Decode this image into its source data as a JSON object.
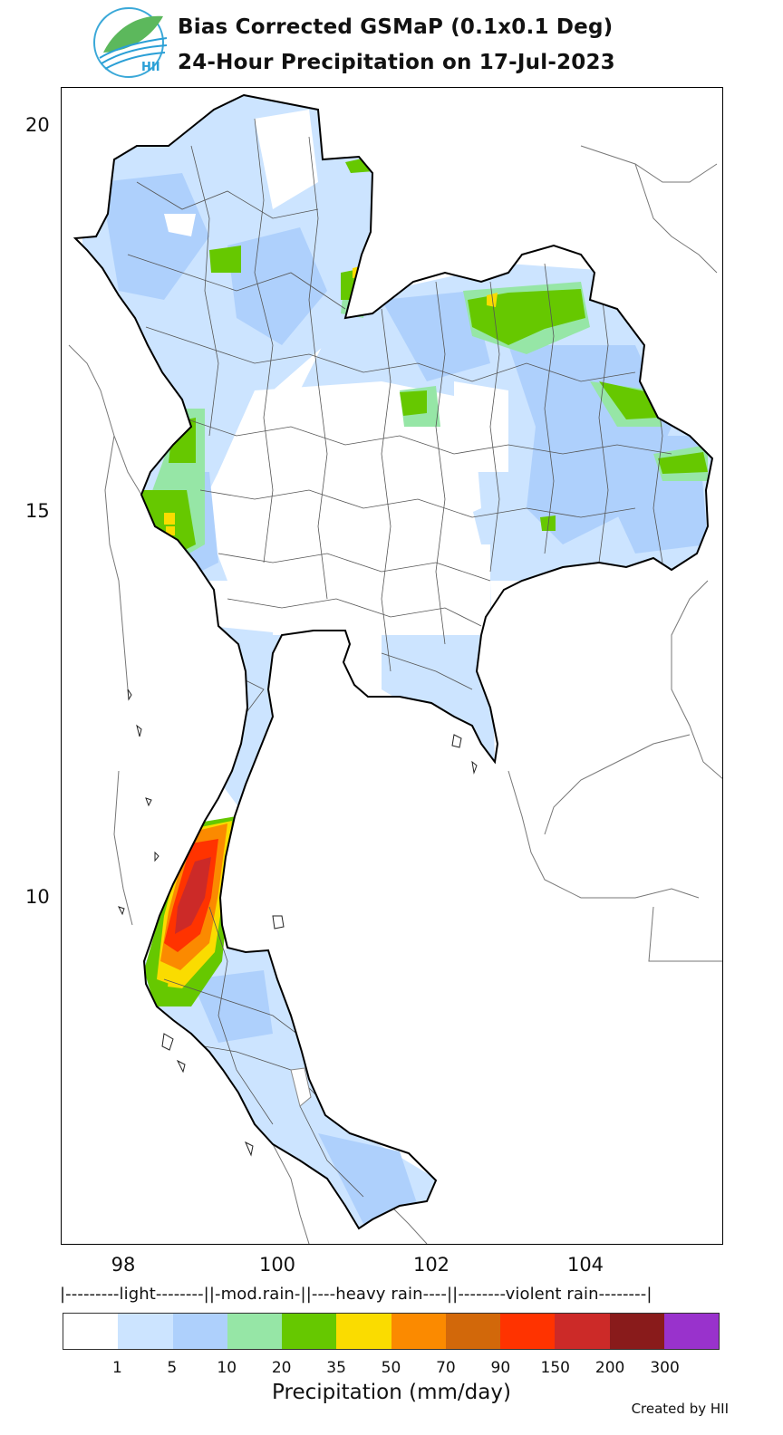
{
  "header": {
    "title_line1": "Bias Corrected GSMaP (0.1x0.1 Deg)",
    "title_line2": "24-Hour Precipitation on 17-Jul-2023",
    "logo_text": "HII"
  },
  "map": {
    "region": "Thailand",
    "lat_ticks": [
      "20",
      "15",
      "10"
    ],
    "lon_ticks": [
      "98",
      "100",
      "102",
      "104"
    ]
  },
  "legend": {
    "categories_line": "|---------light--------||-mod.rain-||----heavy rain----||--------violent rain--------|",
    "colors": [
      "#ffffff",
      "#cce4ff",
      "#aed0fc",
      "#96e6a6",
      "#66c800",
      "#fadc00",
      "#fb8a00",
      "#d2680a",
      "#ff3300",
      "#cc2a28",
      "#891b1b",
      "#9932cc"
    ],
    "labels": [
      "1",
      "5",
      "10",
      "20",
      "35",
      "50",
      "70",
      "90",
      "150",
      "200",
      "300"
    ],
    "xlabel": "Precipitation (mm/day)"
  },
  "footer": {
    "credit": "Created by HII"
  }
}
